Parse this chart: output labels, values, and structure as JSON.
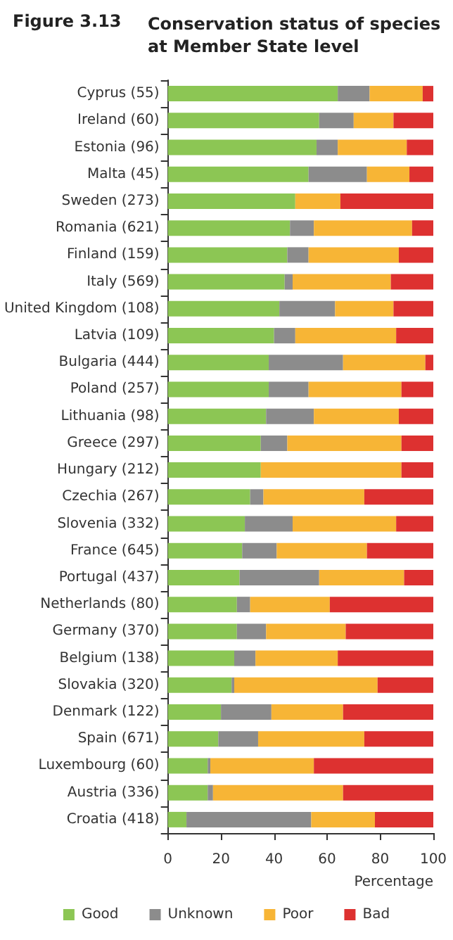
{
  "chart_data": {
    "type": "bar",
    "orientation": "horizontal",
    "stacked": true,
    "title": "Conservation status of species at Member State level",
    "annotations": [
      "Figure 3.13"
    ],
    "xlabel": "Percentage",
    "categories": [
      "Cyprus (55)",
      "Ireland (60)",
      "Estonia (96)",
      "Malta (45)",
      "Sweden (273)",
      "Romania (621)",
      "Finland (159)",
      "Italy (569)",
      "United Kingdom (108)",
      "Latvia (109)",
      "Bulgaria (444)",
      "Poland (257)",
      "Lithuania (98)",
      "Greece (297)",
      "Hungary (212)",
      "Czechia (267)",
      "Slovenia (332)",
      "France (645)",
      "Portugal (437)",
      "Netherlands (80)",
      "Germany (370)",
      "Belgium (138)",
      "Slovakia (320)",
      "Denmark (122)",
      "Spain (671)",
      "Luxembourg (60)",
      "Austria (336)",
      "Croatia (418)"
    ],
    "series": [
      {
        "name": "Good",
        "color": "#8cc654",
        "values": [
          64,
          57,
          56,
          53,
          48,
          46,
          45,
          44,
          42,
          40,
          38,
          38,
          37,
          35,
          35,
          31,
          29,
          28,
          27,
          26,
          26,
          25,
          24,
          20,
          19,
          15,
          15,
          7
        ]
      },
      {
        "name": "Unknown",
        "color": "#8c8c8c",
        "values": [
          12,
          13,
          8,
          22,
          0,
          9,
          8,
          3,
          21,
          8,
          28,
          15,
          18,
          10,
          0,
          5,
          18,
          13,
          30,
          5,
          11,
          8,
          1,
          19,
          15,
          1,
          2,
          47
        ]
      },
      {
        "name": "Poor",
        "color": "#f7b536",
        "values": [
          20,
          15,
          26,
          16,
          17,
          37,
          34,
          37,
          22,
          38,
          31,
          35,
          32,
          43,
          53,
          38,
          39,
          34,
          32,
          30,
          30,
          31,
          54,
          27,
          40,
          39,
          49,
          24
        ]
      },
      {
        "name": "Bad",
        "color": "#dd3130",
        "values": [
          4,
          15,
          10,
          9,
          35,
          8,
          13,
          16,
          15,
          14,
          3,
          12,
          13,
          12,
          12,
          26,
          14,
          25,
          11,
          39,
          33,
          36,
          21,
          34,
          26,
          45,
          34,
          22
        ]
      }
    ],
    "xlim": [
      0,
      100
    ],
    "xticks": [
      0,
      20,
      40,
      60,
      80,
      100
    ],
    "grid": false,
    "legend": "bottom"
  }
}
